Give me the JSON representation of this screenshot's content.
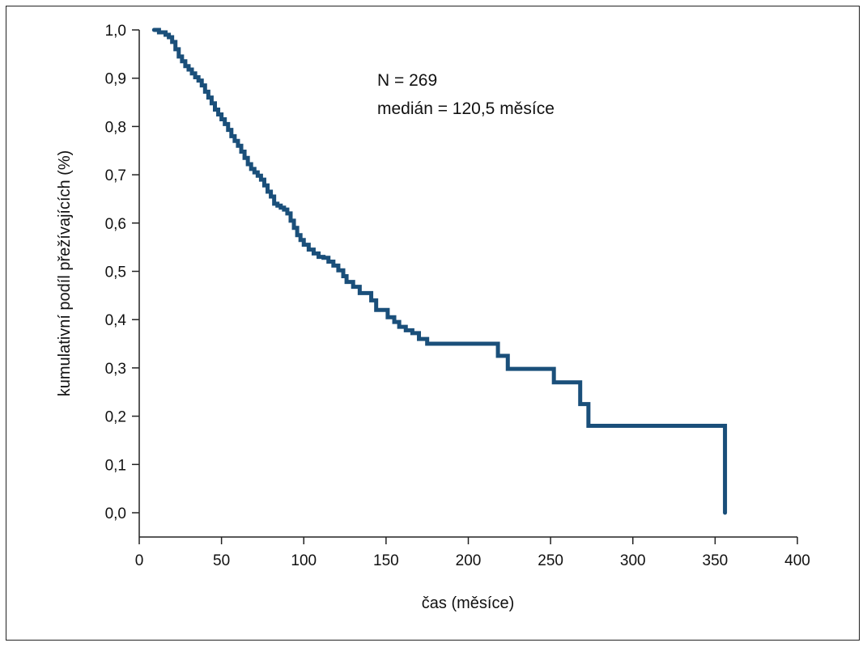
{
  "chart_data": {
    "type": "line",
    "step": true,
    "title": "",
    "xlabel": "čas (měsíce)",
    "ylabel": "kumulativní podíl přežívajících (%)",
    "xlim": [
      0,
      400
    ],
    "ylim": [
      -0.05,
      1.0
    ],
    "xticks": [
      0,
      50,
      100,
      150,
      200,
      250,
      300,
      350,
      400
    ],
    "xtick_labels": [
      "0",
      "50",
      "100",
      "150",
      "200",
      "250",
      "300",
      "350",
      "400"
    ],
    "yticks": [
      0.0,
      0.1,
      0.2,
      0.3,
      0.4,
      0.5,
      0.6,
      0.7,
      0.8,
      0.9,
      1.0
    ],
    "ytick_labels": [
      "0,0",
      "0,1",
      "0,2",
      "0,3",
      "0,4",
      "0,5",
      "0,6",
      "0,7",
      "0,8",
      "0,9",
      "1,0"
    ],
    "grid": false,
    "legend": "none",
    "annotations": [
      "N = 269",
      "medián = 120,5 měsíce"
    ],
    "line_color": "#1a4f7a",
    "series": [
      {
        "x": [
          9,
          12,
          16,
          18,
          20,
          22,
          24,
          26,
          28,
          30,
          32,
          34,
          36,
          38,
          40,
          42,
          44,
          46,
          48,
          50,
          52,
          54,
          56,
          58,
          60,
          62,
          64,
          66,
          68,
          70,
          72,
          74,
          76,
          78,
          80,
          82,
          84,
          86,
          88,
          90,
          92,
          94,
          96,
          98,
          100,
          103,
          106,
          109,
          112,
          115,
          118,
          121,
          124,
          126,
          130,
          134,
          138,
          141,
          144,
          148,
          151,
          155,
          158,
          162,
          166,
          170,
          175,
          218,
          224,
          252,
          268,
          273,
          356,
          356
        ],
        "y": [
          1.0,
          0.995,
          0.99,
          0.985,
          0.975,
          0.96,
          0.945,
          0.935,
          0.925,
          0.918,
          0.91,
          0.902,
          0.895,
          0.885,
          0.872,
          0.86,
          0.848,
          0.835,
          0.825,
          0.815,
          0.805,
          0.793,
          0.78,
          0.77,
          0.76,
          0.748,
          0.735,
          0.722,
          0.712,
          0.705,
          0.698,
          0.69,
          0.678,
          0.665,
          0.655,
          0.64,
          0.636,
          0.632,
          0.628,
          0.62,
          0.605,
          0.59,
          0.575,
          0.565,
          0.555,
          0.545,
          0.537,
          0.53,
          0.528,
          0.52,
          0.512,
          0.502,
          0.49,
          0.478,
          0.468,
          0.455,
          0.455,
          0.44,
          0.42,
          0.42,
          0.405,
          0.395,
          0.385,
          0.378,
          0.372,
          0.36,
          0.35,
          0.325,
          0.298,
          0.27,
          0.225,
          0.18,
          0.18,
          0.0
        ]
      }
    ]
  }
}
